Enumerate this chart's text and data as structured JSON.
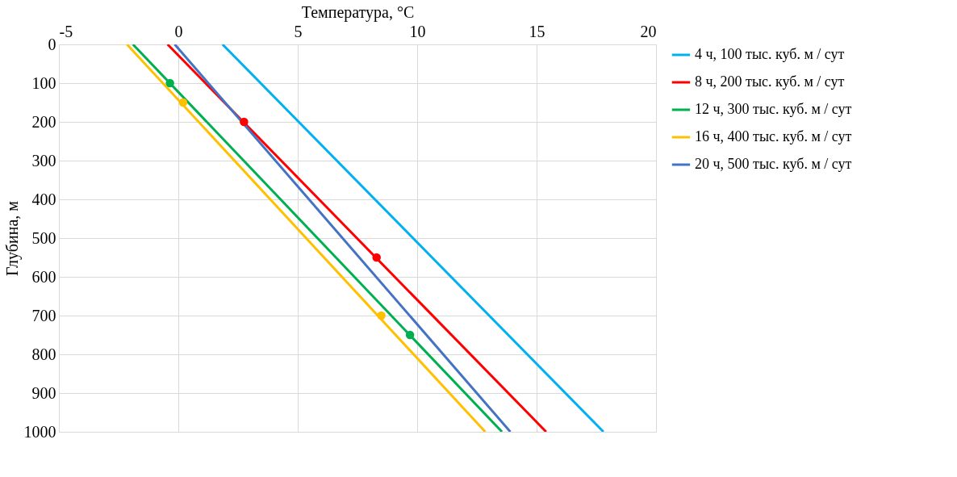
{
  "chart_data": {
    "type": "line",
    "xlabel": "Температура, °C",
    "ylabel": "Глубина, м",
    "xlim": [
      -5,
      20
    ],
    "xticks": [
      -5,
      0,
      5,
      10,
      15,
      20
    ],
    "ylim": [
      1000,
      0
    ],
    "yticks": [
      0,
      100,
      200,
      300,
      400,
      500,
      600,
      700,
      800,
      900,
      1000
    ],
    "grid": true,
    "legend": "right",
    "marker": "none",
    "line_style": "solid",
    "series": [
      {
        "name": "4 ч, 100 тыс. куб. м / сут",
        "color": "#00b0f0",
        "x": [
          1.85,
          17.8
        ],
        "values": [
          0,
          1000
        ]
      },
      {
        "name": "8 ч, 200 тыс. куб. м / сут",
        "color": "#ff0000",
        "x": [
          -0.45,
          15.4
        ],
        "values": [
          0,
          1000
        ]
      },
      {
        "name": "12 ч, 300 тыс. куб. м / сут",
        "color": "#00b050",
        "x": [
          -1.9,
          13.55
        ],
        "values": [
          0,
          1000
        ]
      },
      {
        "name": "16 ч, 400 тыс. куб. м / сут",
        "color": "#ffc000",
        "x": [
          -2.15,
          12.85
        ],
        "values": [
          0,
          1000
        ]
      },
      {
        "name": "20 ч, 500 тыс. куб. м / сут",
        "color": "#4472c4",
        "x": [
          -0.15,
          13.9
        ],
        "values": [
          0,
          1000
        ]
      },
      {
        "type": "scatter",
        "marker": "circle",
        "color": "#ff0000",
        "x": [
          2.75,
          8.3
        ],
        "values": [
          200,
          550
        ]
      },
      {
        "type": "scatter",
        "marker": "circle",
        "color": "#00b050",
        "x": [
          -0.35,
          9.7
        ],
        "values": [
          100,
          750
        ]
      },
      {
        "type": "scatter",
        "marker": "circle",
        "color": "#ffc000",
        "x": [
          0.2,
          8.5
        ],
        "values": [
          150,
          700
        ]
      }
    ]
  }
}
